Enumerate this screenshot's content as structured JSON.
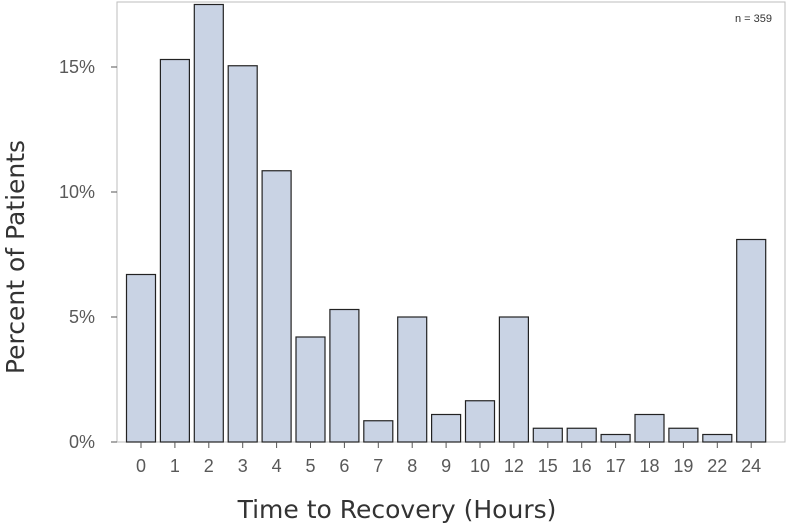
{
  "chart_data": {
    "type": "bar",
    "title": "",
    "xlabel": "Time to Recovery (Hours)",
    "ylabel": "Percent of Patients",
    "annotation": "n = 359",
    "categories": [
      "0",
      "1",
      "2",
      "3",
      "4",
      "5",
      "6",
      "7",
      "8",
      "9",
      "10",
      "12",
      "15",
      "16",
      "17",
      "18",
      "19",
      "22",
      "24"
    ],
    "values": [
      6.7,
      15.3,
      17.5,
      15.05,
      10.85,
      4.2,
      5.3,
      0.85,
      5.0,
      1.1,
      1.65,
      5.0,
      0.55,
      0.55,
      0.3,
      1.1,
      0.55,
      0.3,
      8.1
    ],
    "ylim": [
      0,
      17.6
    ],
    "yticks": [
      0,
      5,
      10,
      15
    ],
    "ytick_labels": [
      "0%",
      "5%",
      "10%",
      "15%"
    ],
    "legend": "none",
    "grid": false,
    "bar_color": "#c9d3e4",
    "bar_edge_color": "#222222"
  }
}
